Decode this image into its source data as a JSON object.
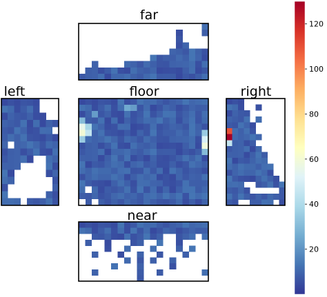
{
  "chart_data": {
    "type": "heatmap",
    "description_source": "five heatmap panels arranged around a floor; white cells are empty",
    "colorscale": {
      "name": "RdYlBu_r",
      "stops": [
        "#313695",
        "#4575b4",
        "#74add1",
        "#abd9e9",
        "#e0f3f8",
        "#ffffbf",
        "#fee090",
        "#fdae61",
        "#f46d43",
        "#d73027",
        "#a50026"
      ],
      "vmin": 0,
      "vmax": 130,
      "ticks": [
        20,
        40,
        60,
        80,
        100,
        120
      ],
      "tick_labels": [
        "20",
        "40",
        "60",
        "80",
        "100",
        "120"
      ]
    },
    "panels": [
      {
        "name": "far",
        "title": "far",
        "cols": 20,
        "rows": 9,
        "grid": [
          "...................W",
          "...............W...W",
          "...............W....",
          "...............WW...",
          "..............WWWWWW",
          "...........WWWWWWWWW",
          "..W....WWWWWWWWWWWWW",
          ".WWWWWWWWWWWWWWWWWWW",
          "WWWWWWWWWWWWWWWWWWWW"
        ]
      },
      {
        "name": "left",
        "title": "left",
        "cols": 9,
        "rows": 15,
        "grid": [
          "WWWWWW...",
          "WWWWWW...",
          "WWWWWWW..",
          "WWWWWWWWW",
          "WWWWWWWW.",
          "WWWWWWWWW",
          "W.WWWWWWW",
          "WWWWWWWWW",
          "WWWWW..WW",
          "WWW....WW",
          "WW.....WW",
          "WW......W",
          "W.......W",
          "W......WW",
          "WWW.WWWWW"
        ]
      },
      {
        "name": "floor",
        "title": "floor",
        "cols": 20,
        "rows": 17,
        "grid": null
      },
      {
        "name": "right",
        "title": "right",
        "cols": 10,
        "rows": 18,
        "grid": [
          "WWW.......",
          "WWW..W....",
          "WWWW......",
          "WWWW.W....",
          "WWWWW.....",
          "WWWWW.....",
          "WWWWWW....",
          "WWWWW.....",
          "WWWWWW....",
          "WWWWWWW...",
          "WWWWWWW...",
          "WWWWWWWW..",
          "WWWWWWWW..",
          "WWWWWWWWW.",
          "WWW..WWWWW",
          "WWWW.....W",
          "WWWWWWWWWW",
          "WW..WWWW.W"
        ]
      },
      {
        "name": "near",
        "title": "near",
        "cols": 20,
        "rows": 10,
        "grid": [
          "WWWWWWWWWWWWWWWWWWWW",
          "WWWWWWWWWWWWWWWWWWWW",
          "..WWWWWWWWWWW..WWW.W",
          ".W..W...WW..W..W....",
          "....W..W...W...W.W..",
          "..W...W..W..W...W...",
          ".......W.W.W..W.....",
          ".....W...W....W.....",
          "..W......W..W......W",
          ".........W.........."
        ]
      }
    ],
    "hotspots": {
      "floor": [
        {
          "row": 4,
          "col": 0,
          "value": 55
        },
        {
          "row": 4,
          "col": 1,
          "value": 38
        },
        {
          "row": 5,
          "col": 0,
          "value": 60
        },
        {
          "row": 5,
          "col": 1,
          "value": 45
        },
        {
          "row": 6,
          "col": 0,
          "value": 35
        },
        {
          "row": 3,
          "col": 0,
          "value": 30
        },
        {
          "row": 6,
          "col": 19,
          "value": 50
        },
        {
          "row": 7,
          "col": 19,
          "value": 58
        },
        {
          "row": 5,
          "col": 19,
          "value": 35
        },
        {
          "row": 8,
          "col": 19,
          "value": 30
        },
        {
          "row": 1,
          "col": 7,
          "value": 25
        },
        {
          "row": 1,
          "col": 8,
          "value": 22
        },
        {
          "row": 2,
          "col": 2,
          "value": 22
        }
      ],
      "left": [
        {
          "row": 4,
          "col": 8,
          "value": 60
        }
      ],
      "right": [
        {
          "row": 5,
          "col": 0,
          "value": 110
        },
        {
          "row": 6,
          "col": 0,
          "value": 130
        },
        {
          "row": 7,
          "col": 0,
          "value": 45
        }
      ]
    }
  }
}
